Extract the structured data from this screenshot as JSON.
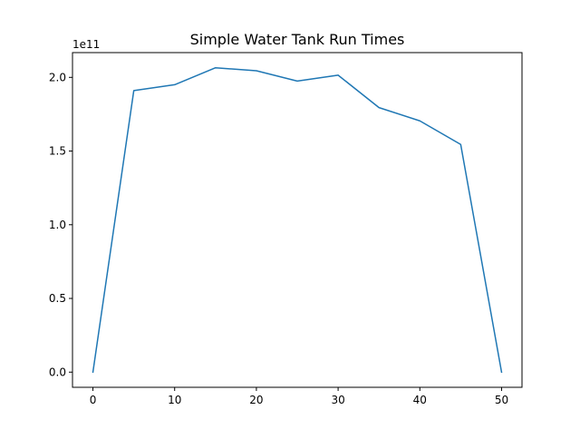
{
  "chart_data": {
    "type": "line",
    "title": "Simple Water Tank Run Times",
    "xlabel": "",
    "ylabel": "",
    "y_scale_label": "1e11",
    "x": [
      0,
      5,
      10,
      15,
      20,
      25,
      30,
      35,
      40,
      45,
      50
    ],
    "series": [
      {
        "values": [
          0,
          191000000000.0,
          195000000000.0,
          206500000000.0,
          204500000000.0,
          197500000000.0,
          201500000000.0,
          179500000000.0,
          170500000000.0,
          154500000000.0,
          0
        ],
        "color": "#1f77b4"
      }
    ],
    "xlim": [
      -2.5,
      52.5
    ],
    "ylim": [
      -10300000000.0,
      216800000000.0
    ],
    "x_ticks": [
      0,
      10,
      20,
      30,
      40,
      50
    ],
    "x_tick_labels": [
      "0",
      "10",
      "20",
      "30",
      "40",
      "50"
    ],
    "y_ticks": [
      0,
      50000000000.0,
      100000000000.0,
      150000000000.0,
      200000000000.0
    ],
    "y_tick_labels": [
      "0.0",
      "0.5",
      "1.0",
      "1.5",
      "2.0"
    ],
    "grid": false,
    "legend": false
  }
}
